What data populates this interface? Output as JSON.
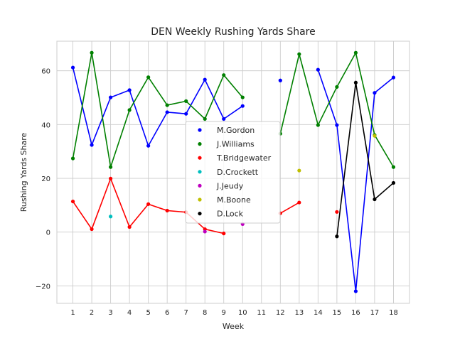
{
  "chart_data": {
    "type": "line",
    "title": "DEN Weekly Rushing Yards Share",
    "xlabel": "Week",
    "ylabel": "Rushing Yards Share",
    "xlim": [
      0.15,
      18.85
    ],
    "ylim": [
      -26.5,
      71
    ],
    "x_ticks": [
      1,
      2,
      3,
      4,
      5,
      6,
      7,
      8,
      9,
      10,
      11,
      12,
      13,
      14,
      15,
      16,
      17,
      18
    ],
    "y_ticks": [
      -20,
      0,
      20,
      40,
      60
    ],
    "grid": true,
    "legend_position": "center",
    "series": [
      {
        "name": "M.Gordon",
        "color": "#0000ff",
        "points": [
          [
            1,
            61.2
          ],
          [
            2,
            32.4
          ],
          [
            3,
            50.1
          ],
          [
            4,
            52.8
          ],
          [
            5,
            32.1
          ],
          [
            6,
            44.6
          ],
          [
            7,
            44.0
          ],
          [
            8,
            56.7
          ],
          [
            9,
            42.1
          ],
          [
            10,
            46.9
          ],
          [
            12,
            56.4
          ],
          [
            14,
            60.4
          ],
          [
            15,
            39.8
          ],
          [
            16,
            -22.0
          ],
          [
            17,
            51.8
          ],
          [
            18,
            57.5
          ]
        ]
      },
      {
        "name": "J.Williams",
        "color": "#008000",
        "points": [
          [
            1,
            27.4
          ],
          [
            2,
            66.7
          ],
          [
            3,
            24.2
          ],
          [
            4,
            45.4
          ],
          [
            5,
            57.6
          ],
          [
            6,
            47.2
          ],
          [
            7,
            48.7
          ],
          [
            8,
            42.1
          ],
          [
            9,
            58.4
          ],
          [
            10,
            50.1
          ],
          [
            12,
            36.6
          ],
          [
            13,
            66.2
          ],
          [
            14,
            39.8
          ],
          [
            15,
            54.0
          ],
          [
            16,
            66.7
          ],
          [
            17,
            36.1
          ],
          [
            18,
            24.2
          ]
        ]
      },
      {
        "name": "T.Bridgewater",
        "color": "#ff0000",
        "points": [
          [
            1,
            11.4
          ],
          [
            2,
            1.1
          ],
          [
            3,
            19.9
          ],
          [
            4,
            1.9
          ],
          [
            5,
            10.4
          ],
          [
            6,
            8.0
          ],
          [
            7,
            7.4
          ],
          [
            8,
            1.1
          ],
          [
            9,
            -0.5
          ],
          [
            12,
            7.0
          ],
          [
            13,
            11.0
          ],
          [
            15,
            7.5
          ]
        ]
      },
      {
        "name": "D.Crockett",
        "color": "#00bfbf",
        "points": [
          [
            3,
            5.8
          ]
        ]
      },
      {
        "name": "J.Jeudy",
        "color": "#bf00bf",
        "points": [
          [
            8,
            0.2
          ],
          [
            10,
            3.0
          ]
        ]
      },
      {
        "name": "M.Boone",
        "color": "#bfbf00",
        "points": [
          [
            13,
            22.9
          ],
          [
            17,
            35.8
          ]
        ]
      },
      {
        "name": "D.Lock",
        "color": "#000000",
        "points": [
          [
            15,
            -1.6
          ],
          [
            16,
            55.6
          ],
          [
            17,
            12.2
          ],
          [
            18,
            18.3
          ]
        ]
      }
    ]
  }
}
